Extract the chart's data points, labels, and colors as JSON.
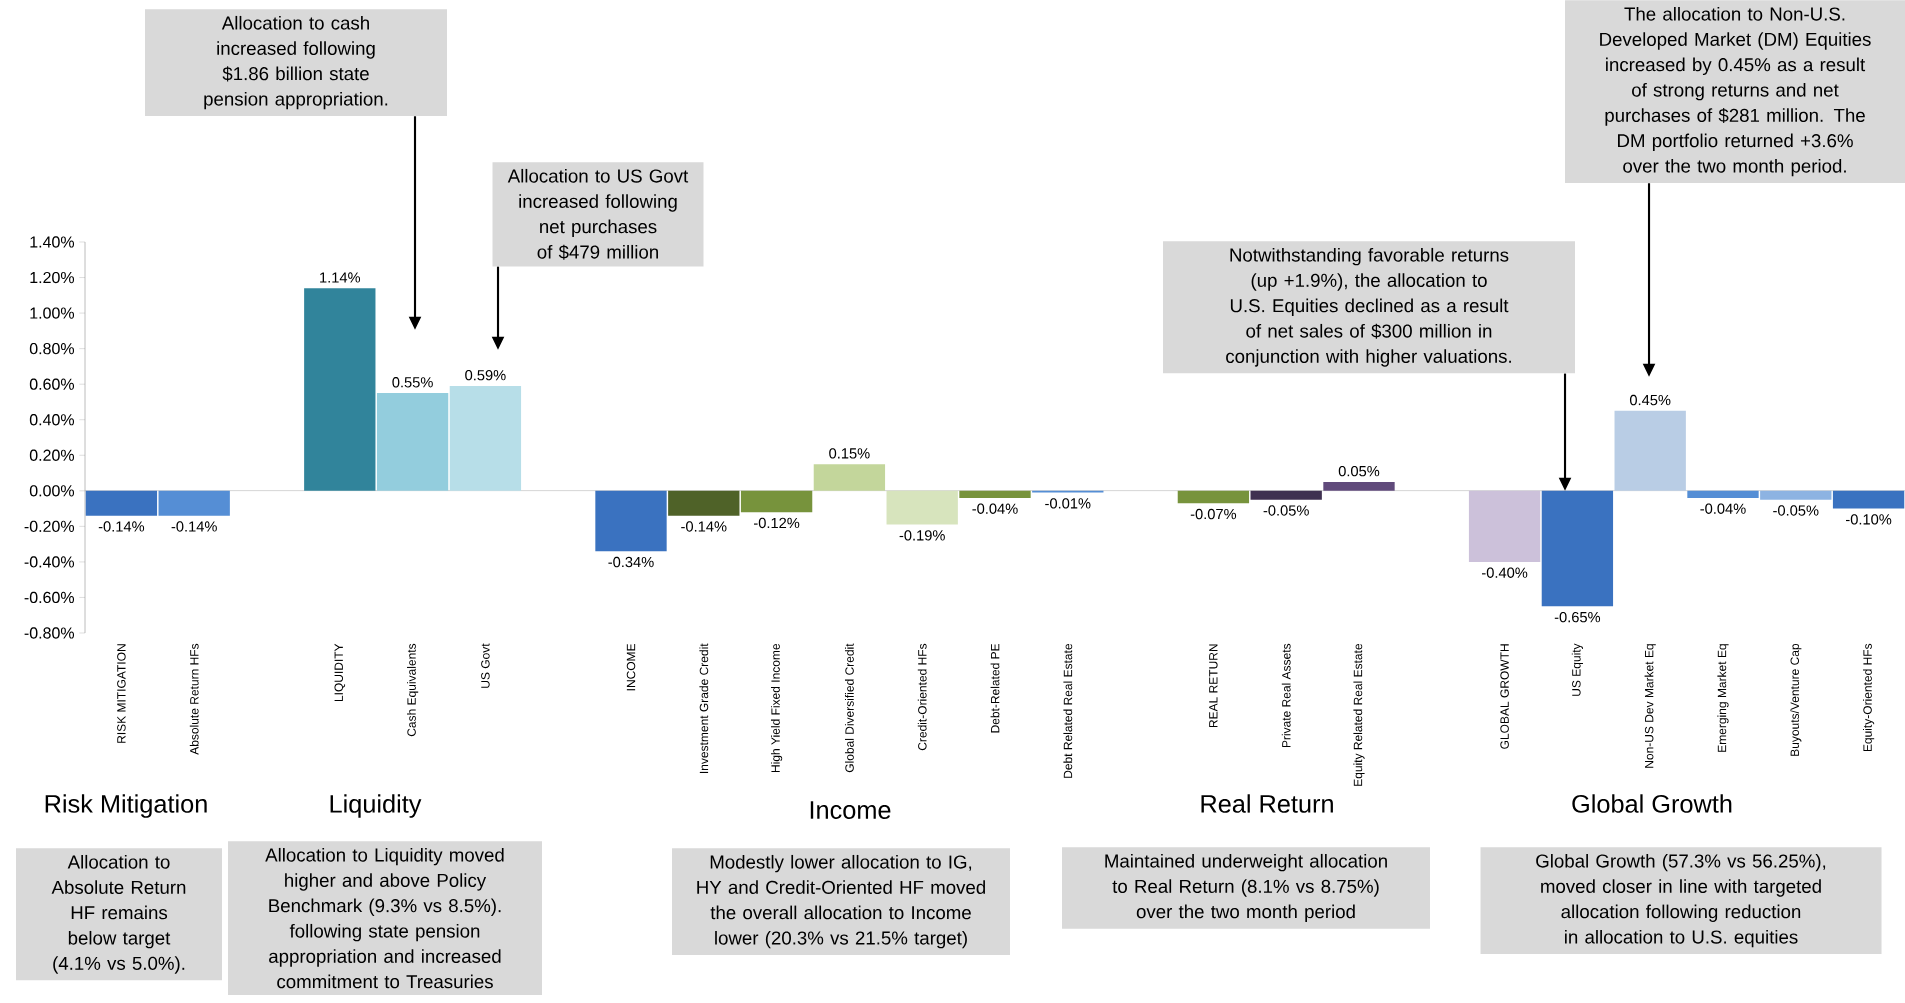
{
  "chart_data": {
    "type": "bar",
    "categories": [
      "RISK MITIGATION",
      "Absolute Return HFs",
      null,
      "LIQUIDITY",
      "Cash Equivalents",
      "US Govt",
      null,
      "INCOME",
      "Investment Grade Credit",
      "High Yield Fixed Income",
      "Global Diversified Credit",
      "Credit-Oriented HFs",
      "Debt-Related PE",
      "Debt Related Real Estate",
      null,
      "REAL RETURN",
      "Private Real Assets",
      "Equity Related Real Estate",
      null,
      "GLOBAL GROWTH",
      "US  Equity",
      "Non-US Dev Market Eq",
      "Emerging Market Eq",
      "Buyouts/Venture Cap",
      "Equity-Oriented HFs"
    ],
    "values": [
      -0.14,
      -0.14,
      null,
      1.14,
      0.55,
      0.59,
      null,
      -0.34,
      -0.14,
      -0.12,
      0.15,
      -0.19,
      -0.04,
      -0.01,
      null,
      -0.07,
      -0.05,
      0.05,
      null,
      -0.4,
      -0.65,
      0.45,
      -0.04,
      -0.05,
      -0.1
    ],
    "value_labels": [
      "-0.14%",
      "-0.14%",
      null,
      "1.14%",
      "0.55%",
      "0.59%",
      null,
      "-0.34%",
      "-0.14%",
      "-0.12%",
      "0.15%",
      "-0.19%",
      "-0.04%",
      "-0.01%",
      null,
      "-0.07%",
      "-0.05%",
      "0.05%",
      null,
      "-0.40%",
      "-0.65%",
      "0.45%",
      "-0.04%",
      "-0.05%",
      "-0.10%"
    ],
    "colors": [
      "#3a72c0",
      "#558ed5",
      null,
      "#31849b",
      "#93cddd",
      "#b7dee8",
      null,
      "#3a72c0",
      "#4f6228",
      "#77933c",
      "#c3d69b",
      "#d7e4bd",
      "#77933c",
      "#558ed5",
      null,
      "#77933c",
      "#3f3151",
      "#604a7b",
      null,
      "#ccc1da",
      "#3a72c0",
      "#b9cde5",
      "#558ed5",
      "#8db3e2",
      "#3a72c0"
    ],
    "ylim": [
      -0.8,
      1.4
    ],
    "yticks": [
      {
        "value": -0.8,
        "label": "-0.80%"
      },
      {
        "value": -0.6,
        "label": "-0.60%"
      },
      {
        "value": -0.4,
        "label": "-0.40%"
      },
      {
        "value": -0.2,
        "label": "-0.20%"
      },
      {
        "value": 0,
        "label": "0.00%"
      },
      {
        "value": 0.2,
        "label": "0.20%"
      },
      {
        "value": 0.4,
        "label": "0.40%"
      },
      {
        "value": 0.6,
        "label": "0.60%"
      },
      {
        "value": 0.8,
        "label": "0.80%"
      },
      {
        "value": 1.0,
        "label": "1.00%"
      },
      {
        "value": 1.2,
        "label": "1.20%"
      },
      {
        "value": 1.4,
        "label": "1.40%"
      }
    ],
    "annotations": [
      "Allocation to cash increased following $1.86 billion state pension appropriation.",
      "Allocation to US Govt increased following net purchases of $479 million",
      "Notwithstanding favorable returns (up +1.9%), the allocation to U.S. Equities declined as a result of net sales of $300 million in conjunction with higher valuations.",
      "The allocation to Non-U.S. Developed Market (DM) Equities increased by 0.45% as a result of strong returns and net purchases of $281 million. The DM portfolio returned +3.6% over the two month period.",
      "Risk Mitigation",
      "Liquidity",
      "Income",
      "Real Return",
      "Global Growth",
      "Allocation to Absolute Return HF remains below target (4.1% vs 5.0%).",
      "Allocation to Liquidity moved higher and above Policy Benchmark (9.3% vs 8.5%). following state pension appropriation and increased commitment to Treasuries",
      "Modestly lower allocation to IG, HY and Credit-Oriented HF moved the overall allocation to Income lower (20.3% vs 21.5% target)",
      "Maintained underweight allocation to Real Return (8.1% vs 8.75%) over the two month period",
      "Global Growth (57.3% vs 56.25%), moved closer in line with targeted allocation following reduction in allocation to U.S. equities"
    ]
  }
}
